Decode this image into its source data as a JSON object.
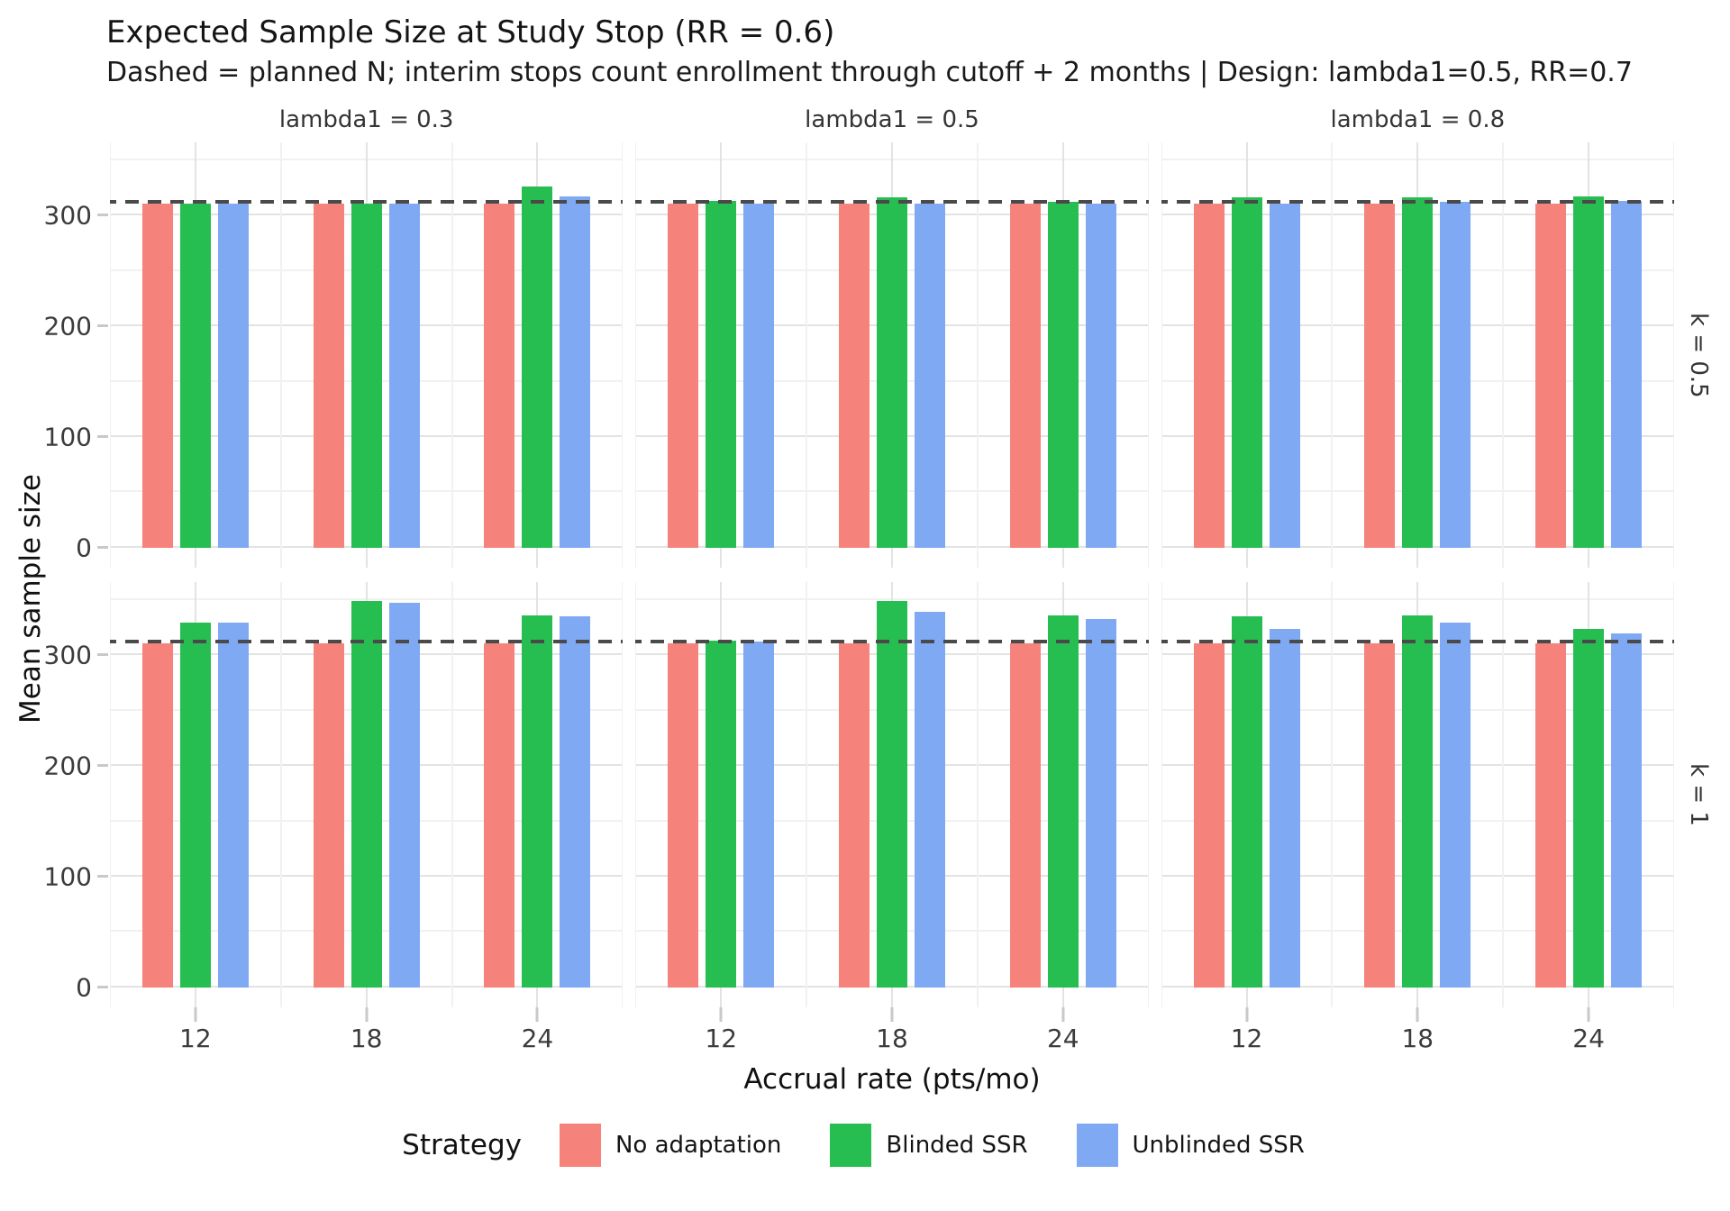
{
  "title": "Expected Sample Size at Study Stop (RR = 0.6)",
  "subtitle": "Dashed = planned N; interim stops count enrollment through cutoff + 2 months | Design: lambda1=0.5, RR=0.7",
  "axes": {
    "x_title": "Accrual rate (pts/mo)",
    "y_title": "Mean sample size",
    "x_tick_labels": [
      "12",
      "18",
      "24"
    ],
    "y_tick_labels": [
      "0",
      "100",
      "200",
      "300"
    ]
  },
  "facets": {
    "col_labels": [
      "lambda1 = 0.3",
      "lambda1 = 0.5",
      "lambda1 = 0.8"
    ],
    "row_labels": [
      "k = 0.5",
      "k = 1"
    ]
  },
  "legend": {
    "title": "Strategy",
    "items": [
      {
        "label": "No adaptation",
        "color": "#F5837B"
      },
      {
        "label": "Blinded SSR",
        "color": "#27BE51"
      },
      {
        "label": "Unblinded SSR",
        "color": "#7FA9F3"
      }
    ]
  },
  "chart_data": {
    "type": "bar",
    "grouping": "facet grid: columns = lambda1, rows = k",
    "categories": [
      "12",
      "18",
      "24"
    ],
    "series_names": [
      "No adaptation",
      "Blinded SSR",
      "Unblinded SSR"
    ],
    "planned_n": 312,
    "y_major": [
      0,
      100,
      200,
      300
    ],
    "y_minor": [
      50,
      150,
      250,
      350
    ],
    "ylim": [
      -18,
      366
    ],
    "group_centers_pct": [
      16.667,
      50,
      83.333
    ],
    "panels": [
      {
        "row": "k = 0.5",
        "col": "lambda1 = 0.3",
        "values": [
          [
            311,
            311,
            311
          ],
          [
            311,
            311,
            326
          ],
          [
            311,
            311,
            317
          ]
        ]
      },
      {
        "row": "k = 0.5",
        "col": "lambda1 = 0.5",
        "values": [
          [
            311,
            311,
            311
          ],
          [
            313,
            316,
            312
          ],
          [
            311,
            311,
            311
          ]
        ]
      },
      {
        "row": "k = 0.5",
        "col": "lambda1 = 0.8",
        "values": [
          [
            311,
            311,
            311
          ],
          [
            316,
            316,
            317
          ],
          [
            311,
            312,
            313
          ]
        ]
      },
      {
        "row": "k = 1",
        "col": "lambda1 = 0.3",
        "values": [
          [
            311,
            311,
            311
          ],
          [
            329,
            349,
            336
          ],
          [
            329,
            347,
            335
          ]
        ]
      },
      {
        "row": "k = 1",
        "col": "lambda1 = 0.5",
        "values": [
          [
            311,
            311,
            311
          ],
          [
            313,
            349,
            336
          ],
          [
            312,
            339,
            333
          ]
        ]
      },
      {
        "row": "k = 1",
        "col": "lambda1 = 0.8",
        "values": [
          [
            311,
            311,
            311
          ],
          [
            335,
            336,
            324
          ],
          [
            324,
            329,
            320
          ]
        ]
      }
    ]
  }
}
